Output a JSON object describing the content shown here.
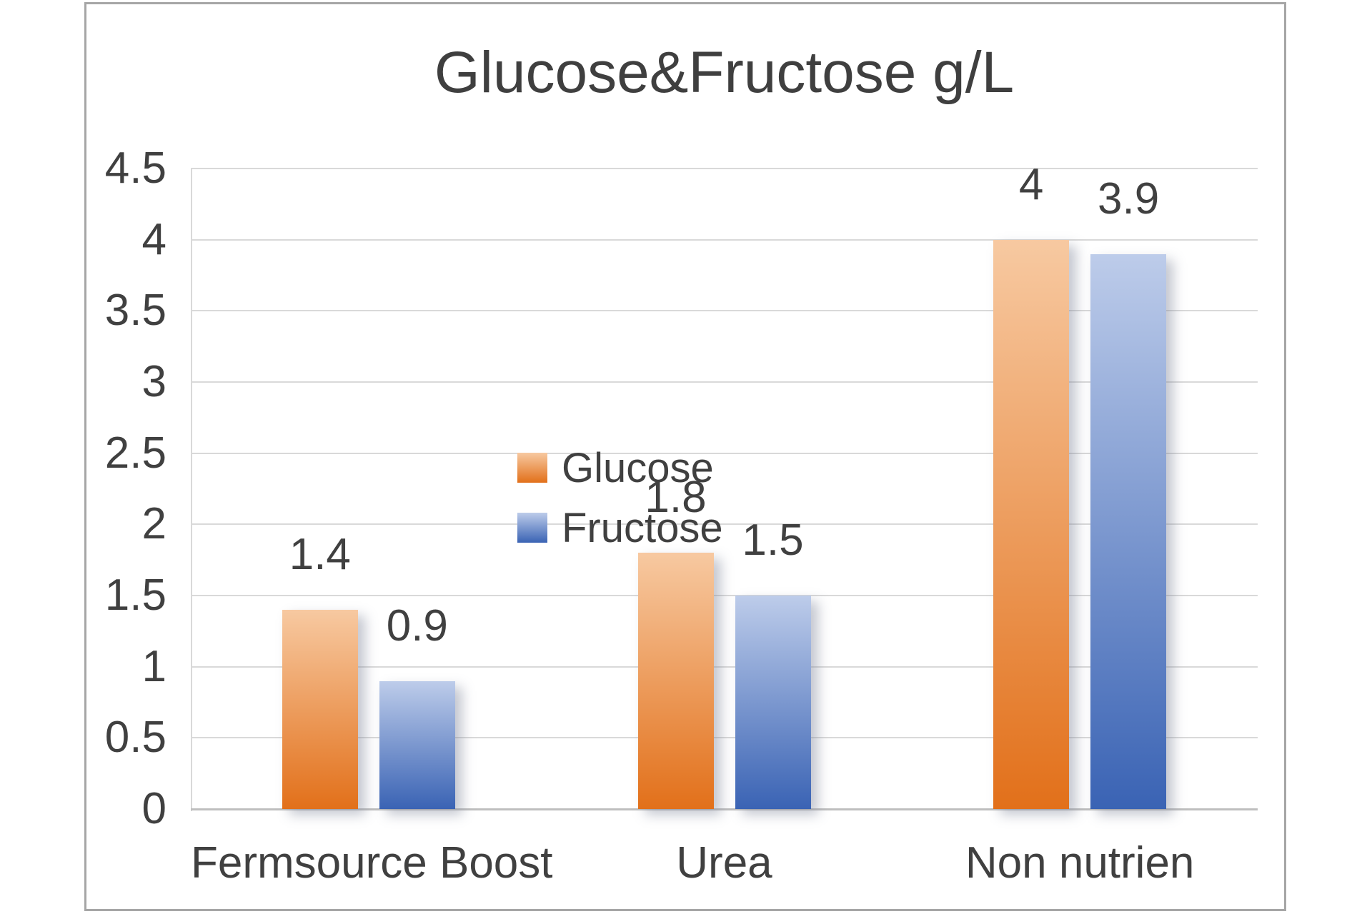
{
  "chart_data": {
    "type": "bar",
    "title": "Glucose&Fructose g/L",
    "categories": [
      "Fermsource Boost",
      "Urea",
      "Non nutrien"
    ],
    "series": [
      {
        "name": "Glucose",
        "values": [
          1.4,
          1.8,
          4
        ],
        "value_labels": [
          "1.4",
          "1.8",
          "4"
        ],
        "fill_top": "#f7c9a1",
        "fill_bottom": "#e2701a"
      },
      {
        "name": "Fructose",
        "values": [
          0.9,
          1.5,
          3.9
        ],
        "value_labels": [
          "0.9",
          "1.5",
          "3.9"
        ],
        "fill_top": "#bdccea",
        "fill_bottom": "#3a63b4"
      }
    ],
    "ylim": [
      0,
      4.5
    ],
    "ytick_step": 0.5,
    "yticks": [
      "4.5",
      "4",
      "3.5",
      "3",
      "2.5",
      "2",
      "1.5",
      "1",
      "0.5",
      "0"
    ],
    "xlabel": "",
    "ylabel": "",
    "grid": true,
    "legend_position": "inside-upper-left"
  },
  "colors": {
    "text": "#404040",
    "title_text": "#3f3f3f",
    "gridline": "#d9d9d9",
    "axis_line": "#bfbfbf",
    "chart_border": "#a6a6a6",
    "background": "#ffffff",
    "glucose_accent": "#e2701a",
    "fructose_accent": "#3a63b4"
  }
}
